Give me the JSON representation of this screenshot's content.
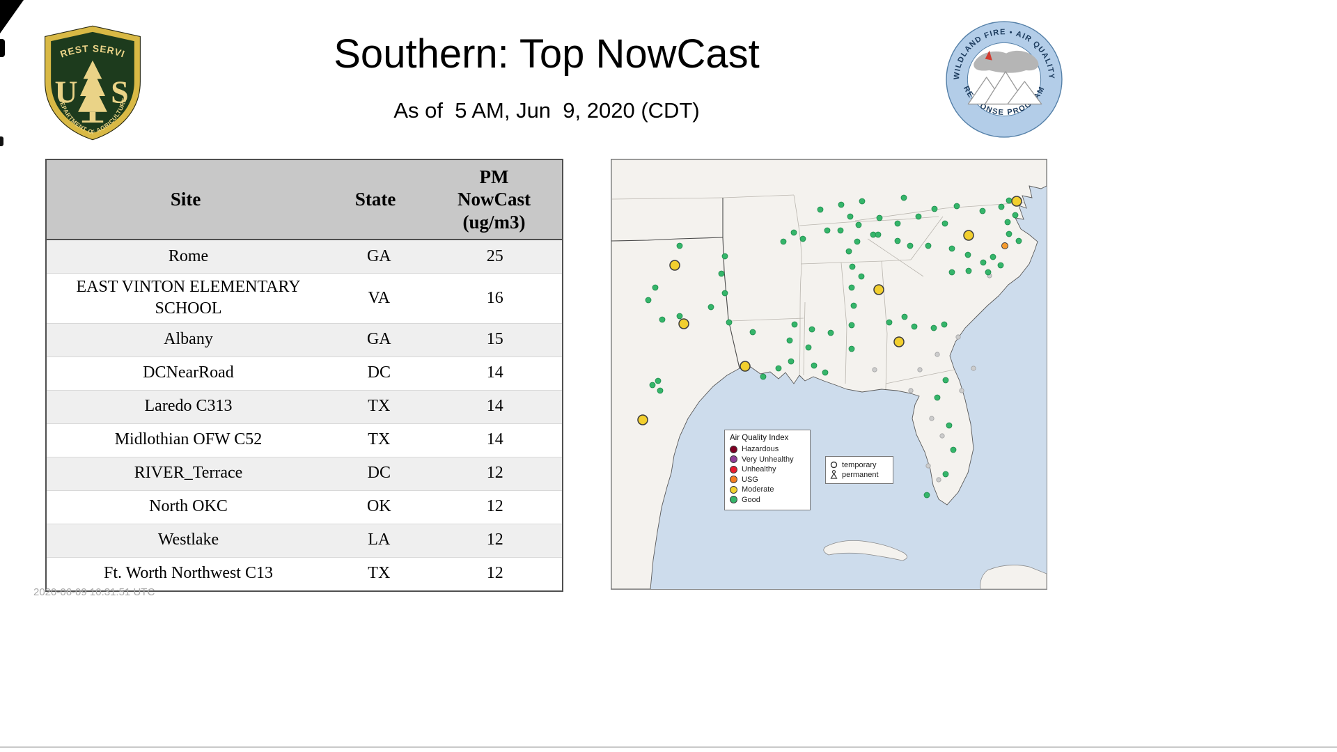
{
  "header": {
    "title": "Southern: Top NowCast",
    "subtitle": "As of  5 AM, Jun  9, 2020 (CDT)"
  },
  "logos": {
    "usfs": {
      "arc_top": "FOREST SERVICE",
      "letter_left": "U",
      "letter_right": "S",
      "arc_bottom": "DEPARTMENT OF AGRICULTURE"
    },
    "airfire": {
      "arc_top": "WILDLAND FIRE • AIR QUALITY",
      "arc_bottom": "RESPONSE PROGRAM"
    }
  },
  "table": {
    "col_site": "Site",
    "col_state": "State",
    "col_pm": "PM\nNowCast\n(ug/m3)",
    "rows": [
      {
        "site": "Rome",
        "state": "GA",
        "pm": "25"
      },
      {
        "site": "EAST VINTON ELEMENTARY SCHOOL",
        "state": "VA",
        "pm": "16"
      },
      {
        "site": "Albany",
        "state": "GA",
        "pm": "15"
      },
      {
        "site": "DCNearRoad",
        "state": "DC",
        "pm": "14"
      },
      {
        "site": "Laredo C313",
        "state": "TX",
        "pm": "14"
      },
      {
        "site": "Midlothian OFW C52",
        "state": "TX",
        "pm": "14"
      },
      {
        "site": "RIVER_Terrace",
        "state": "DC",
        "pm": "12"
      },
      {
        "site": "North OKC",
        "state": "OK",
        "pm": "12"
      },
      {
        "site": "Westlake",
        "state": "LA",
        "pm": "12"
      },
      {
        "site": "Ft. Worth Northwest C13",
        "state": "TX",
        "pm": "12"
      }
    ]
  },
  "timestamp": "2020-06-09 10:31:51 UTC",
  "map": {
    "colors": {
      "good": "#35b56a",
      "good_stroke": "#1d8a4b",
      "moderate": "#f2cf2e",
      "moderate_stroke": "#3c3c3c",
      "usg": "#f59b2d",
      "usg_stroke": "#3c3c3c",
      "inactive": "#cccccc",
      "inactive_stroke": "#a0a0a0"
    },
    "legend": {
      "title": "Air Quality Index",
      "items": [
        {
          "label": "Hazardous",
          "color": "#7e0023"
        },
        {
          "label": "Very Unhealthy",
          "color": "#8f3f97"
        },
        {
          "label": "Unhealthy",
          "color": "#e81c2e"
        },
        {
          "label": "USG",
          "color": "#f57e20"
        },
        {
          "label": "Moderate",
          "color": "#f2d22e"
        },
        {
          "label": "Good",
          "color": "#35b56a"
        }
      ]
    },
    "marker_types": {
      "temporary": "temporary",
      "permanent": "permanent"
    },
    "markers": {
      "good": [
        [
          571,
          59
        ],
        [
          560,
          68
        ],
        [
          580,
          80
        ],
        [
          569,
          90
        ],
        [
          533,
          74
        ],
        [
          496,
          67
        ],
        [
          464,
          71
        ],
        [
          420,
          55
        ],
        [
          441,
          82
        ],
        [
          479,
          92
        ],
        [
          571,
          107
        ],
        [
          585,
          117
        ],
        [
          534,
          148
        ],
        [
          548,
          140
        ],
        [
          559,
          152
        ],
        [
          541,
          162
        ],
        [
          512,
          137
        ],
        [
          513,
          160
        ],
        [
          489,
          162
        ],
        [
          489,
          128
        ],
        [
          411,
          92
        ],
        [
          385,
          84
        ],
        [
          355,
          94
        ],
        [
          343,
          82
        ],
        [
          376,
          108
        ],
        [
          411,
          117
        ],
        [
          429,
          124
        ],
        [
          455,
          124
        ],
        [
          383,
          108
        ],
        [
          360,
          60
        ],
        [
          330,
          65
        ],
        [
          300,
          72
        ],
        [
          353,
          118
        ],
        [
          329,
          102
        ],
        [
          310,
          102
        ],
        [
          275,
          114
        ],
        [
          262,
          105
        ],
        [
          247,
          118
        ],
        [
          341,
          132
        ],
        [
          346,
          154
        ],
        [
          359,
          168
        ],
        [
          345,
          184
        ],
        [
          348,
          210
        ],
        [
          345,
          238
        ],
        [
          315,
          249
        ],
        [
          288,
          244
        ],
        [
          263,
          237
        ],
        [
          256,
          260
        ],
        [
          291,
          296
        ],
        [
          307,
          306
        ],
        [
          421,
          226
        ],
        [
          435,
          240
        ],
        [
          399,
          234
        ],
        [
          463,
          242
        ],
        [
          478,
          237
        ],
        [
          345,
          272
        ],
        [
          480,
          317
        ],
        [
          468,
          342
        ],
        [
          485,
          382
        ],
        [
          491,
          417
        ],
        [
          480,
          452
        ],
        [
          453,
          482
        ],
        [
          203,
          248
        ],
        [
          169,
          234
        ],
        [
          143,
          212
        ],
        [
          163,
          192
        ],
        [
          158,
          164
        ],
        [
          163,
          139
        ],
        [
          98,
          124
        ],
        [
          63,
          184
        ],
        [
          53,
          202
        ],
        [
          73,
          230
        ],
        [
          98,
          225
        ],
        [
          59,
          324
        ],
        [
          67,
          318
        ],
        [
          70,
          332
        ],
        [
          218,
          312
        ],
        [
          240,
          300
        ],
        [
          283,
          270
        ],
        [
          258,
          290
        ]
      ],
      "moderate": [
        [
          91,
          152
        ],
        [
          513,
          109
        ],
        [
          582,
          60
        ],
        [
          384,
          187
        ],
        [
          104,
          236
        ],
        [
          413,
          262
        ],
        [
          192,
          297
        ],
        [
          45,
          374
        ]
      ],
      "usg": [
        [
          565,
          124
        ]
      ],
      "inactive": [
        [
          443,
          302
        ],
        [
          468,
          280
        ],
        [
          503,
          332
        ],
        [
          460,
          372
        ],
        [
          475,
          397
        ],
        [
          378,
          302
        ],
        [
          543,
          167
        ],
        [
          520,
          300
        ],
        [
          430,
          332
        ],
        [
          498,
          255
        ],
        [
          455,
          440
        ],
        [
          470,
          460
        ]
      ]
    }
  }
}
